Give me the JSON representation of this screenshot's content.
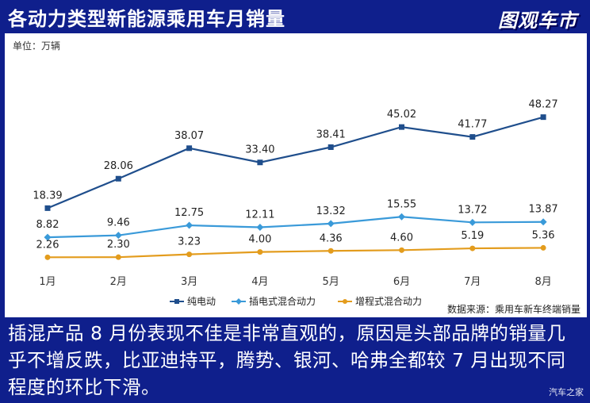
{
  "header": {
    "title": "各动力类型新能源乘用车月销量",
    "brand": "图观车市"
  },
  "chart_data": {
    "type": "line",
    "unit_label": "单位：万辆",
    "categories": [
      "1月",
      "2月",
      "3月",
      "4月",
      "5月",
      "6月",
      "7月",
      "8月"
    ],
    "series": [
      {
        "name": "纯电动",
        "color": "#1f4e8c",
        "marker": "square",
        "values": [
          18.39,
          28.06,
          38.07,
          33.4,
          38.41,
          45.02,
          41.77,
          48.27
        ],
        "labels": [
          "18.39",
          "28.06",
          "38.07",
          "33.40",
          "38.41",
          "45.02",
          "41.77",
          "48.27"
        ]
      },
      {
        "name": "插电式混合动力",
        "color": "#3a9ad9",
        "marker": "diamond",
        "values": [
          8.82,
          9.46,
          12.75,
          12.11,
          13.32,
          15.55,
          13.72,
          13.87
        ],
        "labels": [
          "8.82",
          "9.46",
          "12.75",
          "12.11",
          "13.32",
          "15.55",
          "13.72",
          "13.87"
        ]
      },
      {
        "name": "增程式混合动力",
        "color": "#e39c1d",
        "marker": "circle",
        "values": [
          2.26,
          2.3,
          3.23,
          4.0,
          4.36,
          4.6,
          5.19,
          5.36
        ],
        "labels": [
          "2.26",
          "2.30",
          "3.23",
          "4.00",
          "4.36",
          "4.60",
          "5.19",
          "5.36"
        ]
      }
    ],
    "legend_position": "bottom",
    "grid": false,
    "source": "数据来源：乘用车新车终端销量"
  },
  "caption": "插混产品 8 月份表现不佳是非常直观的，原因是头部品牌的销量几乎不增反跌，比亚迪持平，腾势、银河、哈弗全都较 7 月出现不同程度的环比下滑。",
  "watermark": "汽车之家"
}
